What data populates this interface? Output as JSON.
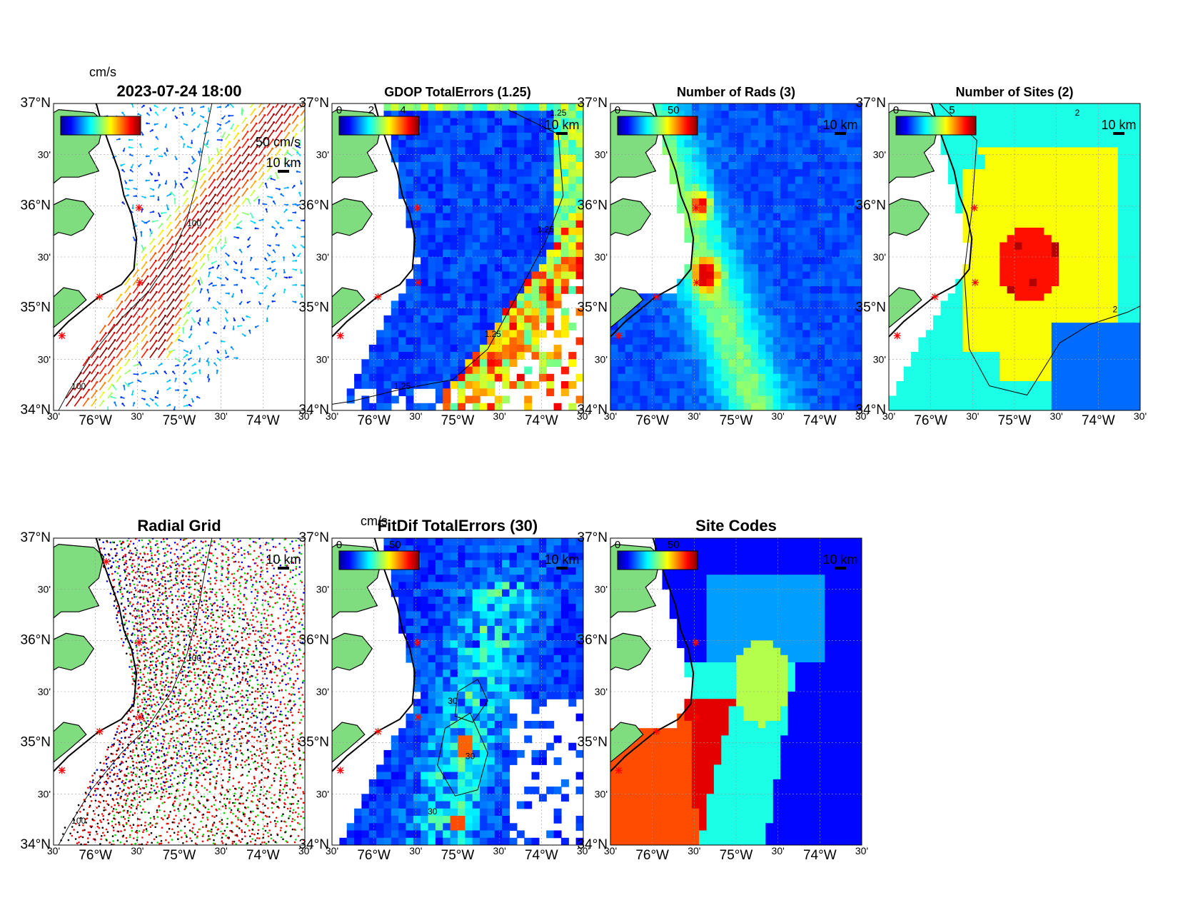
{
  "axes": {
    "lat_labels": [
      "37°N",
      "30'",
      "36°N",
      "30'",
      "35°N",
      "30'",
      "34°N"
    ],
    "lon_labels": [
      "30'",
      "76°W",
      "30'",
      "75°W",
      "30'",
      "74°W",
      "30'"
    ],
    "lat_range": [
      34,
      37
    ],
    "lon_range": [
      -76.5,
      -73.5
    ]
  },
  "scalebar_label": "10 km",
  "colors": {
    "land": "#7fdc7f",
    "coast": "#000000",
    "site_marker": "#ff0000"
  },
  "sites": [
    {
      "lon": -75.87,
      "lat": 36.77
    },
    {
      "lon": -75.48,
      "lat": 35.98
    },
    {
      "lon": -75.47,
      "lat": 35.25
    },
    {
      "lon": -75.95,
      "lat": 35.11
    },
    {
      "lon": -76.4,
      "lat": 34.73
    }
  ],
  "panels": [
    {
      "id": "totals",
      "title": "2023-07-24 18:00",
      "colorbar_label": "cm/s",
      "colorbar_ticks": [],
      "extra_label": "50 cm/s",
      "contour_label": "100"
    },
    {
      "id": "gdop",
      "title": "GDOP TotalErrors (1.25)",
      "colorbar_label": "",
      "colorbar_ticks": [
        "0",
        "2",
        "4"
      ],
      "extra_label": "",
      "contour_label": "1.25"
    },
    {
      "id": "nrads",
      "title": "Number of Rads (3)",
      "colorbar_label": "",
      "colorbar_ticks": [
        "0",
        "50"
      ],
      "extra_label": "",
      "contour_label": ""
    },
    {
      "id": "nsites",
      "title": "Number of Sites (2)",
      "colorbar_label": "",
      "colorbar_ticks": [
        "0",
        "5"
      ],
      "extra_label": "",
      "contour_label": "2"
    },
    {
      "id": "radgrid",
      "title": "Radial Grid",
      "colorbar_label": "",
      "colorbar_ticks": [],
      "extra_label": "",
      "contour_label": "100"
    },
    {
      "id": "fitdif",
      "title": "FitDif TotalErrors (30)",
      "colorbar_label": "cm/s",
      "colorbar_ticks": [
        "0",
        "50"
      ],
      "extra_label": "",
      "contour_label": "30"
    },
    {
      "id": "sitecodes",
      "title": "Site Codes",
      "colorbar_label": "",
      "colorbar_ticks": [
        "0",
        "50"
      ],
      "extra_label": "",
      "contour_label": ""
    }
  ]
}
